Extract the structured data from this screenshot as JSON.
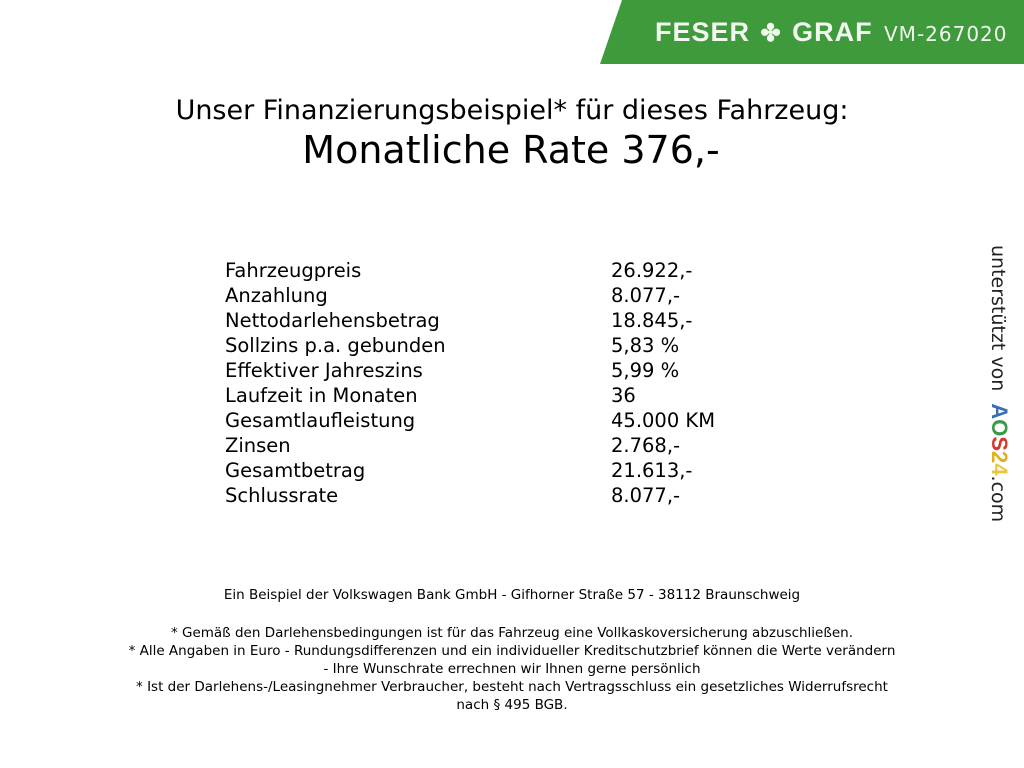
{
  "header": {
    "brand": "FESER",
    "brand2": "GRAF",
    "vehicle_id": "VM-267020",
    "color": "#3f9a3c"
  },
  "headline": "Unser Finanzierungsbeispiel* für dieses Fahrzeug:",
  "monthly_rate": "Monatliche Rate 376,-",
  "rows": [
    {
      "label": "Fahrzeugpreis",
      "value": "26.922,-"
    },
    {
      "label": "Anzahlung",
      "value": "8.077,-"
    },
    {
      "label": "Nettodarlehensbetrag",
      "value": "18.845,-"
    },
    {
      "label": "Sollzins p.a. gebunden",
      "value": "5,83 %"
    },
    {
      "label": "Effektiver Jahreszins",
      "value": "5,99 %"
    },
    {
      "label": "Laufzeit in Monaten",
      "value": "36"
    },
    {
      "label": "Gesamtlaufleistung",
      "value": "45.000 KM"
    },
    {
      "label": "Zinsen",
      "value": "2.768,-"
    },
    {
      "label": "Gesamtbetrag",
      "value": "21.613,-"
    },
    {
      "label": "Schlussrate",
      "value": "8.077,-"
    }
  ],
  "side": {
    "text": "unterstützt von",
    "logo": "AOS24",
    "suffix": ".com"
  },
  "footer": {
    "bank": "Ein Beispiel der Volkswagen Bank GmbH - Gifhorner Straße 57 - 38112 Braunschweig",
    "note1": "* Gemäß den Darlehensbedingungen ist für das Fahrzeug eine Vollkaskoversicherung abzuschließen.",
    "note2a": "* Alle Angaben in Euro - Rundungsdifferenzen und ein individueller Kreditschutzbrief können die Werte verändern",
    "note2b": "- Ihre Wunschrate errechnen wir Ihnen gerne persönlich",
    "note3a": "* Ist der Darlehens-/Leasingnehmer Verbraucher, besteht nach Vertragsschluss ein gesetzliches Widerrufsrecht",
    "note3b": "nach § 495 BGB."
  }
}
